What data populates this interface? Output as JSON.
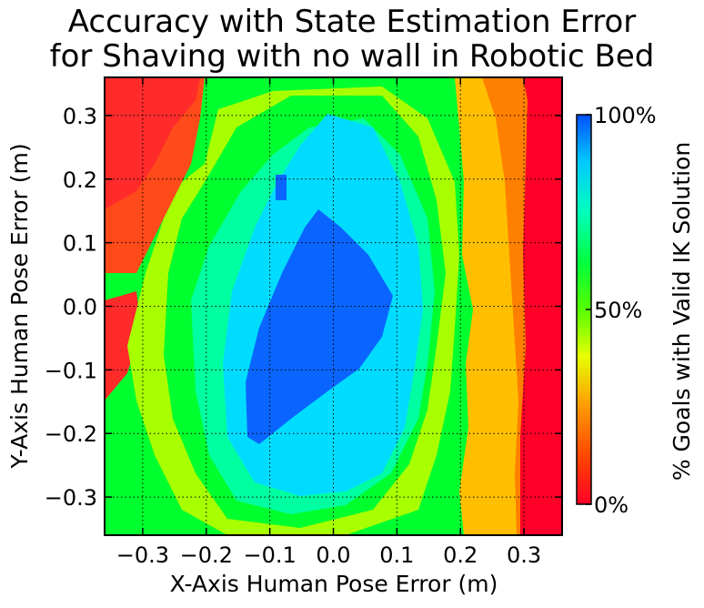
{
  "chart_data": {
    "type": "heatmap",
    "title": [
      "Accuracy with State Estimation Error",
      "for Shaving with no wall in Robotic Bed"
    ],
    "xlabel": "X-Axis Human Pose Error (m)",
    "ylabel": "Y-Axis Human Pose Error (m)",
    "xlim": [
      -0.36,
      0.36
    ],
    "ylim": [
      -0.36,
      0.36
    ],
    "x_ticks": [
      -0.3,
      -0.2,
      -0.1,
      0.0,
      0.1,
      0.2,
      0.3
    ],
    "x_tick_labels": [
      "−0.3",
      "−0.2",
      "−0.1",
      "0.0",
      "0.1",
      "0.2",
      "0.3"
    ],
    "y_ticks": [
      0.3,
      0.2,
      0.1,
      0.0,
      -0.1,
      -0.2,
      -0.3
    ],
    "y_tick_labels": [
      "0.3",
      "0.2",
      "0.1",
      "0.0",
      "−0.1",
      "−0.2",
      "−0.3"
    ],
    "grid": true,
    "colorbar": {
      "label": "% Goals with Valid IK Solution",
      "ticks": [
        100,
        50,
        0
      ],
      "tick_labels": [
        "100%",
        "50%",
        "0%"
      ],
      "colormap": "gist_rainbow",
      "colors": [
        "#ff0029",
        "#ff8000",
        "#ffea00",
        "#8dff00",
        "#00ff2e",
        "#00ff9e",
        "#00e1ff",
        "#0078ff",
        "#0046ff"
      ]
    },
    "value_field": {
      "description": "Percent of goals with valid IK solution over the x/y error grid",
      "regions": [
        {
          "shape": "right-band",
          "x_min": 0.29,
          "value": 0
        },
        {
          "shape": "right-band",
          "x_min": 0.25,
          "x_max": 0.29,
          "value": 10
        },
        {
          "shape": "right-band",
          "x_min": 0.19,
          "x_max": 0.25,
          "value": 25
        },
        {
          "shape": "top-left-corner",
          "x_max": -0.22,
          "y_min": 0.22,
          "value": 8
        },
        {
          "shape": "left-edge-lower",
          "x_max": -0.33,
          "y_min": -0.14,
          "y_max": 0.05,
          "value": 5
        },
        {
          "shape": "center-core",
          "center": [
            0.0,
            -0.05
          ],
          "value": 95
        },
        {
          "shape": "inner-ring",
          "center": [
            0.01,
            0.0
          ],
          "value": 75
        },
        {
          "shape": "middle-ring",
          "center": [
            0.0,
            0.0
          ],
          "value": 60
        },
        {
          "shape": "outer-ring",
          "center": [
            -0.05,
            0.0
          ],
          "value": 45
        }
      ]
    }
  }
}
